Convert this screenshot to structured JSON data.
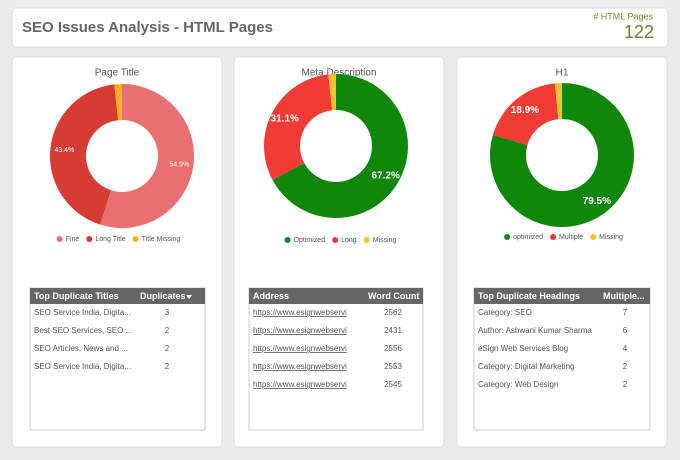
{
  "header": {
    "title": "SEO Issues Analysis - HTML Pages",
    "kpi_label": "# HTML Pages",
    "kpi_value": 122
  },
  "chart_data": [
    {
      "type": "pie",
      "donut": true,
      "title": "Page Title",
      "categories": [
        "Fine",
        "Long Title",
        "Title Missing"
      ],
      "values": [
        54.9,
        43.4,
        1.7
      ],
      "value_labels": [
        "54.9%",
        "43.4%",
        null
      ],
      "colors": [
        "#e87070",
        "#d63c33",
        "#f9b11b"
      ]
    },
    {
      "type": "pie",
      "donut": true,
      "title": "Meta Description",
      "categories": [
        "Optimized",
        "Long",
        "Missing"
      ],
      "values": [
        67.2,
        31.1,
        1.7
      ],
      "value_labels": [
        "67.2%",
        "31.1%",
        null
      ],
      "colors": [
        "#0f870b",
        "#f03c35",
        "#fbc02d"
      ]
    },
    {
      "type": "pie",
      "donut": true,
      "title": "H1",
      "categories": [
        "optimized",
        "Multiple",
        "Missing"
      ],
      "values": [
        79.5,
        18.9,
        1.6
      ],
      "value_labels": [
        "79.5%",
        "18.9%",
        null
      ],
      "colors": [
        "#0f870b",
        "#f03c35",
        "#fbc02d"
      ]
    }
  ],
  "tables": [
    {
      "columns": [
        "Top Duplicate Titles",
        "Duplicates"
      ],
      "rows": [
        [
          "SEO Service India, Digita...",
          3
        ],
        [
          "Best SEO Services, SEO ...",
          2
        ],
        [
          "SEO Articles, News and ...",
          2
        ],
        [
          "SEO Service India, Digita...",
          2
        ]
      ]
    },
    {
      "columns": [
        "Address",
        "Word Count"
      ],
      "rows": [
        [
          "https://www.esignwebservi",
          2562
        ],
        [
          "https://www.esignwebservi",
          2431
        ],
        [
          "https://www.esignwebservi",
          2556
        ],
        [
          "https://www.esignwebservi",
          2553
        ],
        [
          "https://www.esignwebservi",
          2545
        ]
      ]
    },
    {
      "columns": [
        "Top Duplicate Headings",
        "Multiple..."
      ],
      "rows": [
        [
          "Category: SEO",
          7
        ],
        [
          "Author: Ashwani Kumar Sharma",
          6
        ],
        [
          "eSign Web Services Blog",
          4
        ],
        [
          "Category: Digital Marketing",
          2
        ],
        [
          "Category: Web Design",
          2
        ]
      ]
    }
  ]
}
